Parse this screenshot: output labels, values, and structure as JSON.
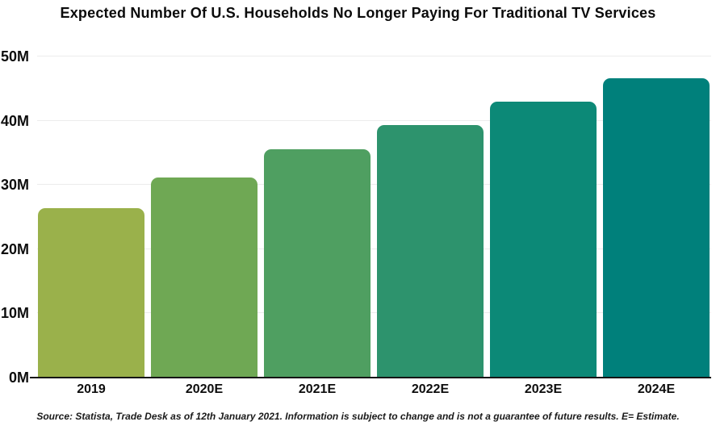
{
  "chart_data": {
    "type": "bar",
    "title": "Expected Number Of U.S. Households No Longer Paying For Traditional TV Services",
    "categories": [
      "2019",
      "2020E",
      "2021E",
      "2022E",
      "2023E",
      "2024E"
    ],
    "values": [
      26.4,
      31.2,
      35.5,
      39.3,
      43.0,
      46.6
    ],
    "unit": "millions of households",
    "bar_colors": [
      "#9ab14b",
      "#6fa854",
      "#4f9f61",
      "#2d936d",
      "#0c8977",
      "#00807b"
    ],
    "ylim": [
      0,
      50
    ],
    "yticks": [
      {
        "value": 0,
        "label": "0M"
      },
      {
        "value": 10,
        "label": "10M"
      },
      {
        "value": 20,
        "label": "20M"
      },
      {
        "value": 30,
        "label": "30M"
      },
      {
        "value": 40,
        "label": "40M"
      },
      {
        "value": 50,
        "label": "50M"
      }
    ],
    "grid": true,
    "legend_position": "none",
    "source": "Source: Statista, Trade Desk as of 12th January 2021. Information is subject to change and is not a guarantee of future results. E= Estimate."
  }
}
